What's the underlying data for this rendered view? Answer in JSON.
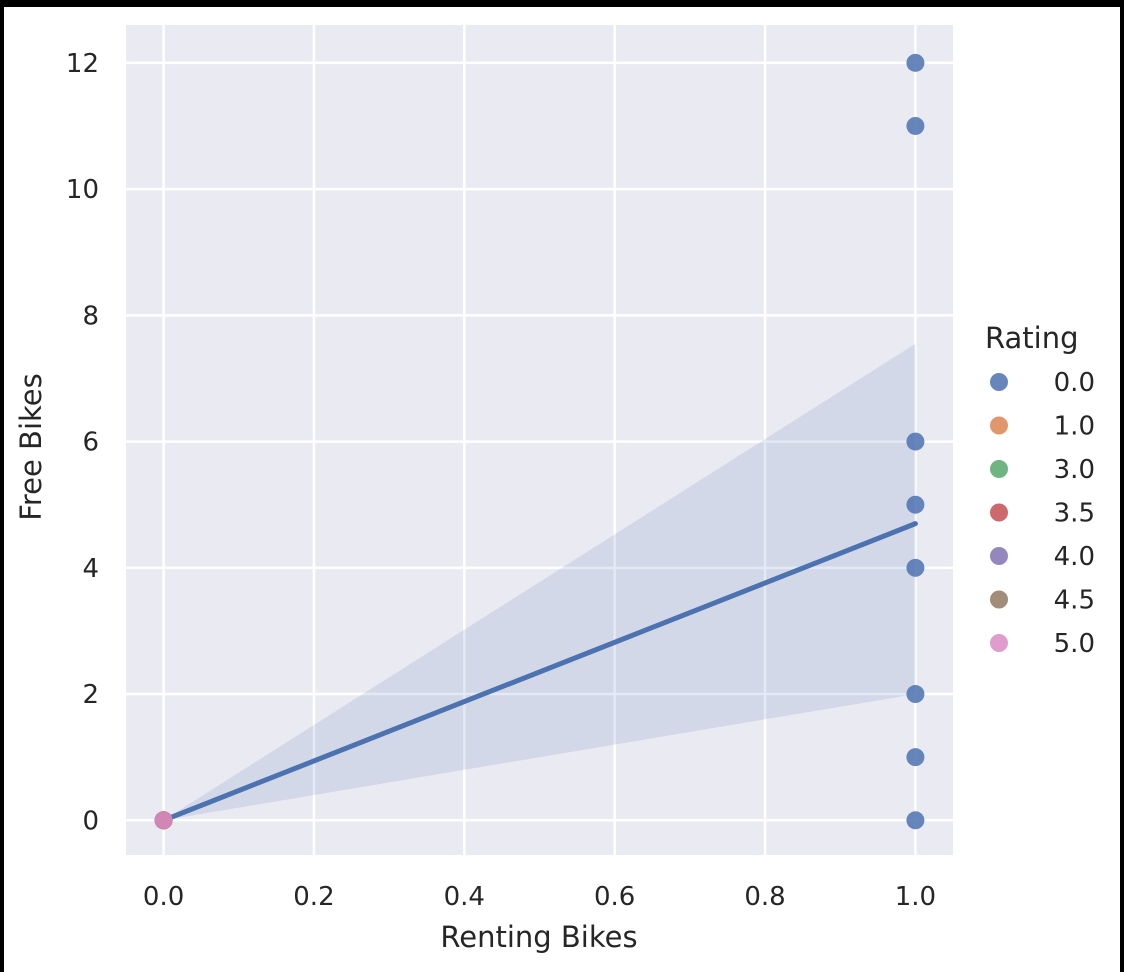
{
  "chart_data": {
    "type": "scatter",
    "xlabel": "Renting Bikes",
    "ylabel": "Free Bikes",
    "xlim": [
      -0.05,
      1.05
    ],
    "ylim": [
      -0.55,
      12.6
    ],
    "x_ticks": [
      0.0,
      0.2,
      0.4,
      0.6,
      0.8,
      1.0
    ],
    "x_tick_labels": [
      "0.0",
      "0.2",
      "0.4",
      "0.6",
      "0.8",
      "1.0"
    ],
    "y_ticks": [
      0,
      2,
      4,
      6,
      8,
      10,
      12
    ],
    "y_tick_labels": [
      "0",
      "2",
      "4",
      "6",
      "8",
      "10",
      "12"
    ],
    "grid": true,
    "background_color": "#eaeaf2",
    "legend": {
      "title": "Rating",
      "placement": "right",
      "entries": [
        {
          "label": "0.0",
          "color": "#4c72b0"
        },
        {
          "label": "1.0",
          "color": "#dd8452"
        },
        {
          "label": "3.0",
          "color": "#55a868"
        },
        {
          "label": "3.5",
          "color": "#c44e52"
        },
        {
          "label": "4.0",
          "color": "#8172b3"
        },
        {
          "label": "4.5",
          "color": "#937860"
        },
        {
          "label": "5.0",
          "color": "#da8bc3"
        }
      ]
    },
    "series": [
      {
        "name": "0.0",
        "color": "#4c72b0",
        "x": [
          1,
          1,
          1,
          1,
          1,
          1,
          1,
          1,
          0
        ],
        "y": [
          12,
          11,
          6,
          5,
          4,
          2,
          1,
          0,
          0
        ]
      },
      {
        "name": "1.0",
        "color": "#dd8452",
        "x": [
          0
        ],
        "y": [
          0
        ]
      },
      {
        "name": "3.0",
        "color": "#55a868",
        "x": [
          0
        ],
        "y": [
          0
        ]
      },
      {
        "name": "3.5",
        "color": "#c44e52",
        "x": [
          0
        ],
        "y": [
          0
        ]
      },
      {
        "name": "4.0",
        "color": "#8172b3",
        "x": [
          0
        ],
        "y": [
          0
        ]
      },
      {
        "name": "4.5",
        "color": "#937860",
        "x": [
          0
        ],
        "y": [
          0
        ]
      },
      {
        "name": "5.0",
        "color": "#da8bc3",
        "x": [
          0
        ],
        "y": [
          0
        ]
      }
    ],
    "regression": {
      "color": "#4c72b0",
      "x": [
        0,
        1
      ],
      "y": [
        0,
        4.7
      ],
      "ci_upper": [
        0,
        7.55
      ],
      "ci_lower": [
        0,
        2.0
      ]
    }
  }
}
